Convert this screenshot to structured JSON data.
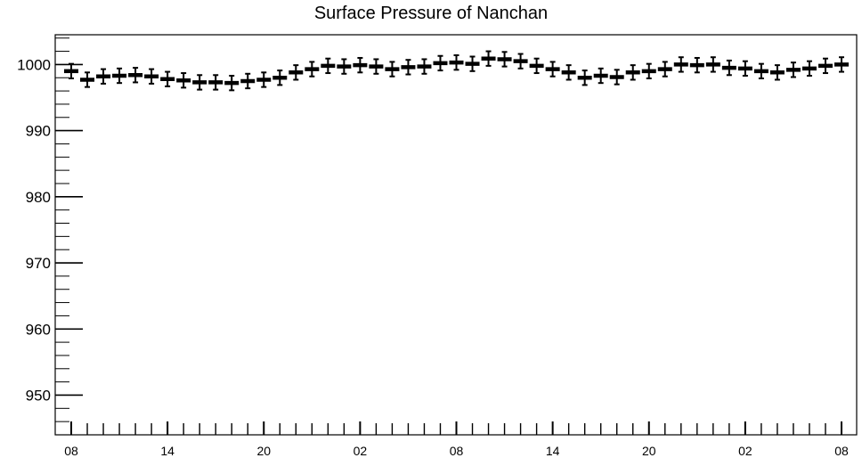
{
  "chart_data": {
    "type": "scatter",
    "title": "Surface Pressure of Nanchan",
    "xlabel": "",
    "ylabel": "",
    "x_tick_labels": [
      "08",
      "14",
      "20",
      "02",
      "08",
      "14",
      "20",
      "02",
      "08"
    ],
    "y_ticks": [
      950,
      960,
      970,
      980,
      990,
      1000
    ],
    "ylim": [
      944,
      1004.5
    ],
    "grid": false,
    "error_bar": 1.1,
    "series": [
      {
        "values": [
          999.0,
          997.7,
          998.2,
          998.3,
          998.4,
          998.2,
          997.8,
          997.6,
          997.3,
          997.3,
          997.2,
          997.5,
          997.7,
          998.0,
          998.8,
          999.3,
          999.8,
          999.7,
          999.9,
          999.7,
          999.3,
          999.6,
          999.7,
          1000.2,
          1000.3,
          1000.1,
          1000.9,
          1000.8,
          1000.5,
          999.8,
          999.3,
          998.8,
          998.0,
          998.3,
          998.1,
          998.8,
          999.0,
          999.3,
          1000.0,
          999.9,
          1000.0,
          999.5,
          999.4,
          999.0,
          998.8,
          999.2,
          999.4,
          999.8,
          1000.0
        ]
      }
    ]
  }
}
